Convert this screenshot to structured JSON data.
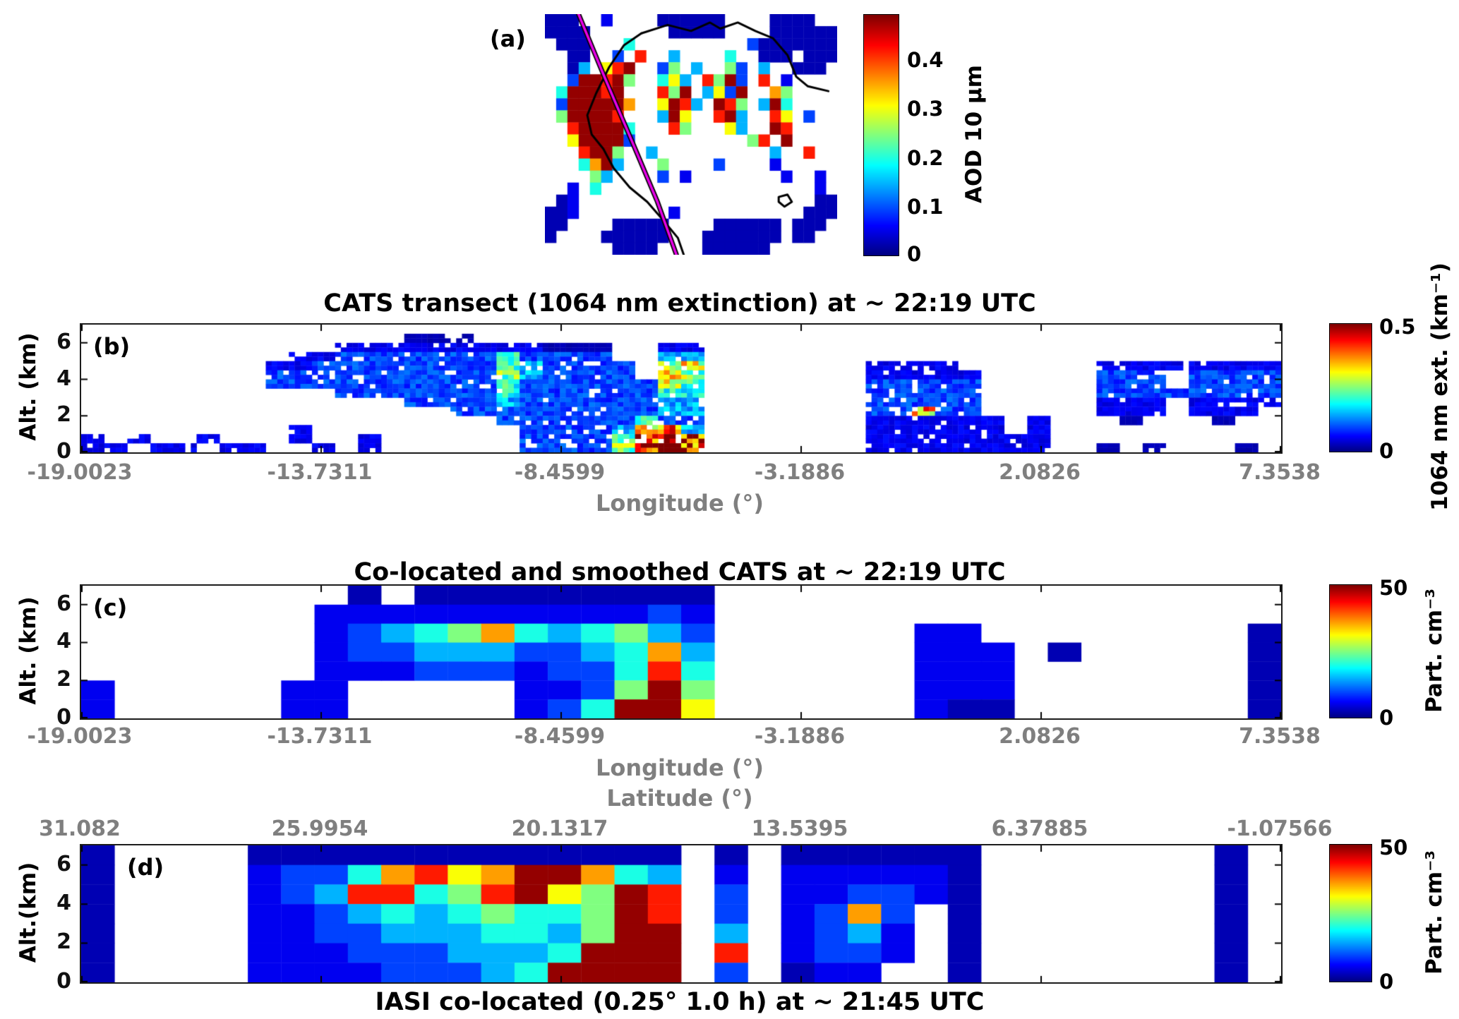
{
  "chart_data": {
    "type": "heatmap",
    "figure_kind": "multi-panel aerosol satellite / lidar curtain figure",
    "encoding": {
      "missing_char": ".",
      "levels": {
        "1": 0.05,
        "2": 0.11,
        "3": 0.19,
        "4": 0.3,
        "5": 0.4,
        "6": 0.5,
        "7": 0.62,
        "8": 0.72,
        "9": 0.85,
        "f": 0.98
      },
      "note": "Grid strings: one character per cell, rows listed top to bottom; each character maps to a fraction of the panel colorbar maximum (jet colormap); '.' = no data (white)."
    },
    "colors": {
      "track_magenta": "#e800e8",
      "coastline": "#000000",
      "tick_label_gray": "#7f7f7f"
    },
    "panels": {
      "a": {
        "label": "(a)",
        "description": "Satellite AOD 10 µm map over northwest Africa with lidar ground track",
        "colorbar": {
          "label": "AOD 10 µm",
          "vmin": 0,
          "vmax": 0.49,
          "ticks": [
            "0.4",
            "0.3",
            "0.2",
            "0.1",
            "0"
          ]
        },
        "ncols": 26,
        "grid": [
          "111..2....111111....1111..",
          "1111.......11111....111111",
          ".111...5..........31111111",
          "..11..3.9..4....5..111.111",
          "..14.79f..36.4..63.4..111.",
          "..3ff9f6..574.96f3.9.2....",
          ".5fff9f...96f.473f..86....",
          ".3fffff8..7f94.f96.4f5....",
          ".6ffff9...4f7..9f4..97.3..",
          "..9ffff5...96...74..f9....",
          "..7ffff3..........69.f....",
          "...9ff6..4..........4..9..",
          "...58f4...6....3....2.....",
          "....64....3.2........2..2.",
          "..2.5...................2.",
          ".12.....................11",
          "112........2...........111",
          "11....11111....111111.111.",
          "1....111111...1111111.11..",
          "......1111....111111......"
        ],
        "coastlines": [
          [
            [
              0.33,
              0.08
            ],
            [
              0.27,
              0.13
            ],
            [
              0.22,
              0.22
            ],
            [
              0.175,
              0.33
            ],
            [
              0.145,
              0.42
            ],
            [
              0.16,
              0.5
            ],
            [
              0.2,
              0.56
            ],
            [
              0.235,
              0.64
            ],
            [
              0.29,
              0.72
            ],
            [
              0.35,
              0.78
            ],
            [
              0.4,
              0.85
            ],
            [
              0.455,
              0.93
            ],
            [
              0.475,
              1.0
            ]
          ],
          [
            [
              0.33,
              0.08
            ],
            [
              0.42,
              0.045
            ],
            [
              0.5,
              0.07
            ],
            [
              0.565,
              0.035
            ],
            [
              0.6,
              0.06
            ],
            [
              0.66,
              0.035
            ],
            [
              0.72,
              0.07
            ],
            [
              0.78,
              0.1
            ],
            [
              0.83,
              0.17
            ],
            [
              0.86,
              0.26
            ],
            [
              0.9,
              0.3
            ],
            [
              0.97,
              0.32
            ]
          ],
          [
            [
              0.8,
              0.76
            ],
            [
              0.83,
              0.75
            ],
            [
              0.845,
              0.78
            ],
            [
              0.82,
              0.8
            ],
            [
              0.8,
              0.78
            ],
            [
              0.8,
              0.76
            ]
          ]
        ],
        "ground_track": [
          [
            0.115,
            0.0
          ],
          [
            0.2,
            0.25
          ],
          [
            0.295,
            0.52
          ],
          [
            0.385,
            0.78
          ],
          [
            0.45,
            1.0
          ]
        ]
      },
      "b": {
        "label": "(b)",
        "title": "CATS transect (1064 nm extinction) at ~ 22:19 UTC",
        "ylabel": "Alt. (km)",
        "xlabel": "Longitude (°)",
        "yticks": [
          "6",
          "4",
          "2",
          "0"
        ],
        "xticks": [
          "-19.0023",
          "-13.7311",
          "-8.4599",
          "-3.1886",
          "2.0826",
          "7.3538"
        ],
        "x_range": [
          -19.0023,
          7.3538
        ],
        "alt_range_km": [
          0,
          7
        ],
        "colorbar": {
          "label": "1064 nm ext. (km⁻¹)",
          "vmin": 0,
          "vmax": 0.5,
          "ticks": [
            "0.5",
            "0"
          ]
        },
        "ncols": 52,
        "grid": [
          "....................................................",
          "..............111...................................",
          "...........222222222111..22.........................",
          ".........22333333353333..44.........................",
          "........2233333333543333.67.......2222......22222222",
          "........3333333333643333.76.......22222.....333.3333",
          "........3333333333533333375.......33333.....333.3333",
          "...........3333333533333355.......33333.....33333333",
          "..............3333433333344.......33333.....222.2222",
          "................33333333344.......33833.....222.222.",
          "..................333333533.......222222.2...1...1..",
          ".........2.........33334794.......222222.2..........",
          "2.2..2...2..2......333359f9.......22222222..........",
          "22.22.22..2.2......33336ff9.......22222222..1.1...1."
        ]
      },
      "c": {
        "label": "(c)",
        "title": "Co-located and smoothed CATS at ~ 22:19 UTC",
        "ylabel": "Alt. (km)",
        "xlabel": "Longitude (°)",
        "xlabel2": "Latitude (°)",
        "yticks": [
          "6",
          "4",
          "2",
          "0"
        ],
        "xticks": [
          "-19.0023",
          "-13.7311",
          "-8.4599",
          "-3.1886",
          "2.0826",
          "7.3538"
        ],
        "x_range": [
          -19.0023,
          7.3538
        ],
        "alt_range_km": [
          0,
          7
        ],
        "colorbar": {
          "label": "Part. cm⁻³",
          "vmin": 0,
          "vmax": 50,
          "ticks": [
            "50",
            "0"
          ]
        },
        "ncols": 36,
        "grid": [
          "........1.111111111.................",
          ".......222222222232.................",
          ".......234568545643......22........1",
          ".......233444334584......222.1.....1",
          ".......222333233595......222.......1",
          "2.....22.....2236f6......222.......1",
          "2.....22.....235ff7......211.......1"
        ]
      },
      "d": {
        "label": "(d)",
        "title": "IASI co-located (0.25° 1.0 h) at ~ 21:45 UTC",
        "title_position": "bottom",
        "ylabel": "Alt.(km)",
        "yticks": [
          "6",
          "4",
          "2",
          "0"
        ],
        "xticks": [
          "31.082",
          "25.9954",
          "20.1317",
          "13.5395",
          "6.37885",
          "-1.07566"
        ],
        "x_axis": "Latitude (°)",
        "alt_range_km": [
          0,
          7
        ],
        "colorbar": {
          "label": "Part. cm⁻³",
          "vmin": 0,
          "vmax": 50,
          "ticks": [
            "50",
            "0"
          ]
        },
        "ncols": 36,
        "grid": [
          "1....1111111111111.1.111111.......1.",
          "1....23358978ff854.2.222221.......1.",
          "1....23499569f76f9.3.223321.......1.",
          "1....22345456556f9.3.2383.1.......1.",
          "1....22334445546ff.4.2342.1.......1.",
          "1....2223334445fff.9.2332.1.......1.",
          "1....222233345ffff.3.122..1.......1."
        ]
      }
    }
  }
}
